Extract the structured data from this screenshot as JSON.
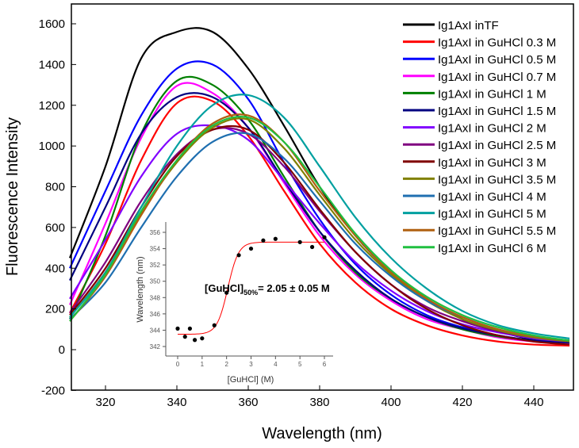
{
  "chart_data": {
    "type": "line",
    "xlabel": "Wavelength (nm)",
    "ylabel": "Fluorescence Intensity",
    "xlim": [
      310,
      450
    ],
    "ylim": [
      -200,
      1680
    ],
    "xticks": [
      320,
      340,
      360,
      380,
      400,
      420,
      440
    ],
    "yticks": [
      -200,
      0,
      200,
      400,
      600,
      800,
      1000,
      1200,
      1400,
      1600
    ],
    "legend_position": "top-right",
    "x": [
      310,
      320,
      330,
      340,
      350,
      360,
      370,
      380,
      390,
      400,
      410,
      420,
      430,
      440,
      450
    ],
    "series": [
      {
        "name": "Ig1AxI inTF",
        "color": "#000000",
        "values": [
          450,
          900,
          1430,
          1560,
          1560,
          1380,
          1100,
          800,
          560,
          380,
          250,
          150,
          90,
          50,
          30
        ]
      },
      {
        "name": "Ig1AxI in GuHCl 0.3 M",
        "color": "#ff0000",
        "values": [
          180,
          520,
          930,
          1210,
          1220,
          1050,
          780,
          520,
          330,
          200,
          120,
          70,
          40,
          25,
          20
        ]
      },
      {
        "name": "Ig1AxI in GuHCl 0.5 M",
        "color": "#0000ff",
        "values": [
          400,
          780,
          1150,
          1380,
          1400,
          1230,
          920,
          640,
          420,
          270,
          170,
          110,
          70,
          45,
          35
        ]
      },
      {
        "name": "Ig1AxI in GuHCl 0.7 M",
        "color": "#ff00ff",
        "values": [
          220,
          620,
          1040,
          1295,
          1260,
          1090,
          820,
          560,
          370,
          240,
          150,
          100,
          60,
          40,
          30
        ]
      },
      {
        "name": "Ig1AxI in GuHCl 1 M",
        "color": "#008000",
        "values": [
          150,
          560,
          1060,
          1320,
          1300,
          1130,
          850,
          580,
          380,
          250,
          160,
          100,
          65,
          45,
          35
        ]
      },
      {
        "name": "Ig1AxI in GuHCl 1.5 M",
        "color": "#000080",
        "values": [
          340,
          700,
          1060,
          1240,
          1240,
          1090,
          830,
          580,
          390,
          250,
          160,
          105,
          70,
          45,
          35
        ]
      },
      {
        "name": "Ig1AxI in GuHCl 2 M",
        "color": "#8000ff",
        "values": [
          250,
          540,
          850,
          1060,
          1100,
          1030,
          830,
          620,
          430,
          290,
          190,
          125,
          85,
          55,
          40
        ]
      },
      {
        "name": "Ig1AxI in GuHCl 2.5 M",
        "color": "#800080",
        "values": [
          180,
          430,
          730,
          960,
          1080,
          1060,
          900,
          680,
          480,
          320,
          210,
          140,
          90,
          60,
          45
        ]
      },
      {
        "name": "Ig1AxI in GuHCl 3 M",
        "color": "#800000",
        "values": [
          170,
          400,
          700,
          950,
          1080,
          1080,
          920,
          690,
          480,
          320,
          200,
          120,
          70,
          40,
          25
        ]
      },
      {
        "name": "Ig1AxI in GuHCl 3.5 M",
        "color": "#808000",
        "values": [
          160,
          380,
          670,
          920,
          1090,
          1130,
          990,
          760,
          540,
          370,
          240,
          150,
          95,
          60,
          40
        ]
      },
      {
        "name": "Ig1AxI in GuHCl 4 M",
        "color": "#1f6fb0",
        "values": [
          150,
          330,
          600,
          850,
          1020,
          1060,
          940,
          730,
          520,
          360,
          240,
          160,
          100,
          65,
          45
        ]
      },
      {
        "name": "Ig1AxI in GuHCl 5 M",
        "color": "#00a0a0",
        "values": [
          160,
          380,
          700,
          1000,
          1200,
          1250,
          1140,
          900,
          650,
          450,
          300,
          190,
          120,
          80,
          55
        ]
      },
      {
        "name": "Ig1AxI in GuHCl 5.5 M",
        "color": "#b06010",
        "values": [
          140,
          360,
          660,
          930,
          1110,
          1150,
          1020,
          780,
          560,
          380,
          250,
          160,
          100,
          65,
          45
        ]
      },
      {
        "name": "Ig1AxI in GuHCl 6 M",
        "color": "#20c040",
        "values": [
          140,
          370,
          680,
          930,
          1100,
          1140,
          1020,
          800,
          570,
          390,
          260,
          170,
          110,
          70,
          45
        ]
      }
    ],
    "inset": {
      "type": "scatter",
      "xlabel": "[GuHCl] (M)",
      "ylabel": "Wavelength (nm)",
      "xlim": [
        -0.3,
        6.5
      ],
      "ylim": [
        341.5,
        356.5
      ],
      "xticks": [
        0,
        1,
        2,
        3,
        4,
        5,
        6
      ],
      "yticks": [
        342,
        344,
        346,
        348,
        350,
        352,
        354,
        356
      ],
      "points": [
        [
          0,
          344.2
        ],
        [
          0.3,
          343.2
        ],
        [
          0.5,
          344.2
        ],
        [
          0.7,
          342.8
        ],
        [
          1,
          343
        ],
        [
          1.5,
          344.6
        ],
        [
          2,
          348.6
        ],
        [
          2.5,
          353.2
        ],
        [
          3,
          354
        ],
        [
          3.5,
          355
        ],
        [
          4,
          355.2
        ],
        [
          5,
          354.8
        ],
        [
          5.5,
          354.2
        ],
        [
          6,
          355.4
        ]
      ],
      "fit": {
        "low": 343.5,
        "high": 354.8,
        "mid": 2.05,
        "slope": 0.22,
        "color": "#ff0000"
      },
      "annotation_main": "[GuHCl]",
      "annotation_sub": "50%",
      "annotation_value": "=  2.05 ± 0.05 M"
    }
  }
}
